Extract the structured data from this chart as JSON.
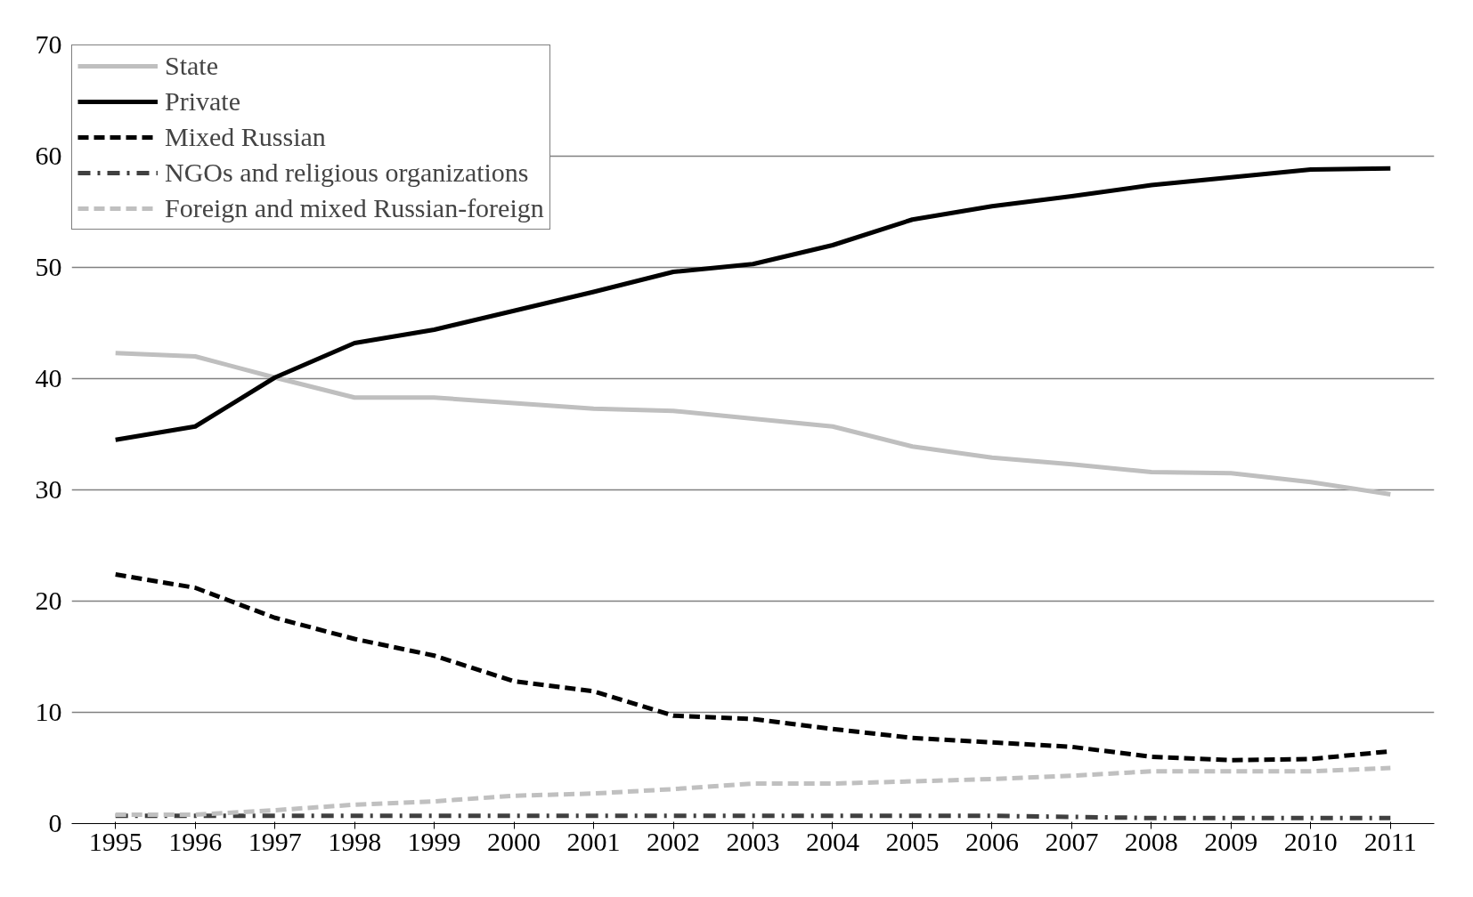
{
  "chart_data": {
    "type": "line",
    "categories": [
      "1995",
      "1996",
      "1997",
      "1998",
      "1999",
      "2000",
      "2001",
      "2002",
      "2003",
      "2004",
      "2005",
      "2006",
      "2007",
      "2008",
      "2009",
      "2010",
      "2011"
    ],
    "ylim": [
      0,
      70
    ],
    "yticks": [
      0,
      10,
      20,
      30,
      40,
      50,
      60,
      70
    ],
    "grid": "y",
    "legend": "top left",
    "marker": "none",
    "series": [
      {
        "name": "State",
        "color": "#bfbfbf",
        "line_style": "solid",
        "values": [
          42.3,
          42.0,
          40.1,
          38.3,
          38.3,
          37.8,
          37.3,
          37.1,
          36.4,
          35.7,
          33.9,
          32.9,
          32.3,
          31.6,
          31.5,
          30.7,
          29.6
        ]
      },
      {
        "name": "Private",
        "color": "#000000",
        "line_style": "solid",
        "values": [
          34.5,
          35.7,
          40.1,
          43.2,
          44.4,
          46.1,
          47.8,
          49.6,
          50.3,
          52.0,
          54.3,
          55.5,
          56.4,
          57.4,
          58.1,
          58.8,
          58.9
        ]
      },
      {
        "name": "Mixed Russian",
        "color": "#000000",
        "line_style": "dashed",
        "values": [
          22.4,
          21.2,
          18.5,
          16.6,
          15.1,
          12.8,
          11.9,
          9.7,
          9.4,
          8.5,
          7.7,
          7.3,
          6.9,
          6.0,
          5.7,
          5.8,
          6.5
        ]
      },
      {
        "name": "NGOs and religious organizations",
        "color": "#404040",
        "line_style": "dashdot",
        "values": [
          0.7,
          0.7,
          0.7,
          0.7,
          0.7,
          0.7,
          0.7,
          0.7,
          0.7,
          0.7,
          0.7,
          0.7,
          0.6,
          0.5,
          0.5,
          0.5,
          0.5
        ]
      },
      {
        "name": "Foreign and mixed Russian-foreign",
        "color": "#c0c0c0",
        "line_style": "dashed",
        "values": [
          0.8,
          0.8,
          1.2,
          1.7,
          2.0,
          2.5,
          2.7,
          3.1,
          3.6,
          3.6,
          3.8,
          4.0,
          4.3,
          4.7,
          4.7,
          4.7,
          5.0
        ]
      }
    ]
  }
}
